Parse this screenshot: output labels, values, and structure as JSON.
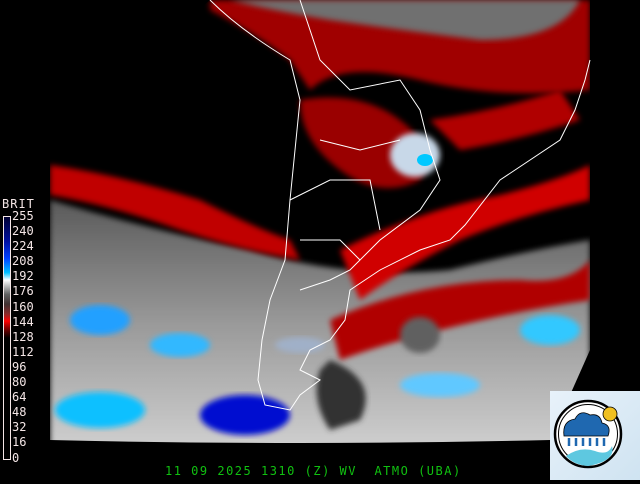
{
  "colorbar": {
    "title": "BRIT",
    "labels": [
      "255",
      "240",
      "224",
      "208",
      "192",
      "176",
      "160",
      "144",
      "128",
      "112",
      "96",
      "80",
      "64",
      "48",
      "32",
      "16",
      "0"
    ]
  },
  "footer": {
    "date": "11 09 2025",
    "time": "1310",
    "zone": "(Z)",
    "channel": "WV",
    "source": "ATMO (UBA)"
  },
  "logo": {
    "icon": "weather-cloud-rain-sun-logo"
  },
  "colors": {
    "footer_text": "#10c010",
    "labels": "#f4e6e6",
    "moist": "#0040ff",
    "dry": "#ff0000"
  }
}
